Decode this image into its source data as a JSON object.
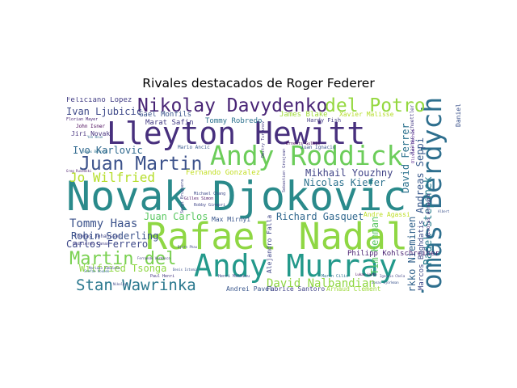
{
  "chart_data": {
    "type": "wordcloud",
    "title": "Rivales destacados de Roger Federer",
    "words": [
      {
        "text": "Novak Djokovic",
        "weight": 100
      },
      {
        "text": "Rafael Nadal",
        "weight": 86
      },
      {
        "text": "Andy Murray",
        "weight": 73
      },
      {
        "text": "Lleyton Hewitt",
        "weight": 71
      },
      {
        "text": "Tomas Berdych",
        "weight": 60
      },
      {
        "text": "Andy Roddick",
        "weight": 60
      },
      {
        "text": "Juan Martin",
        "weight": 44
      },
      {
        "text": "Martin del",
        "weight": 40
      },
      {
        "text": "Nikolay Davydenko",
        "weight": 42
      },
      {
        "text": "del Potro",
        "weight": 40
      },
      {
        "text": "Stan Wawrinka",
        "weight": 36
      },
      {
        "text": "Tommy Haas",
        "weight": 26
      },
      {
        "text": "Jo Wilfried",
        "weight": 26
      },
      {
        "text": "Wilfried Tsonga",
        "weight": 22
      },
      {
        "text": "Carlos Ferrero",
        "weight": 22
      },
      {
        "text": "Robin Soderling",
        "weight": 20
      },
      {
        "text": "David Nalbandian",
        "weight": 24
      },
      {
        "text": "Juan Carlos",
        "weight": 20
      },
      {
        "text": "Mikhail Youzhny",
        "weight": 20
      },
      {
        "text": "Nicolas Kiefer",
        "weight": 20
      },
      {
        "text": "Richard Gasquet",
        "weight": 20
      },
      {
        "text": "Radek Stepanek",
        "weight": 22
      },
      {
        "text": "Andreas Seppi",
        "weight": 20
      },
      {
        "text": "David Ferrer",
        "weight": 20
      },
      {
        "text": "Jarkko Nieminen",
        "weight": 18
      },
      {
        "text": "Ivan Ljubicic",
        "weight": 18
      },
      {
        "text": "Ivo Karlovic",
        "weight": 18
      },
      {
        "text": "Feliciano Lopez",
        "weight": 14
      },
      {
        "text": "Jiri Novak",
        "weight": 12
      },
      {
        "text": "Gael Monfils",
        "weight": 14
      },
      {
        "text": "Marat Safin",
        "weight": 14
      },
      {
        "text": "Tommy Robredo",
        "weight": 14
      },
      {
        "text": "James Blake",
        "weight": 15
      },
      {
        "text": "Xavier Malisse",
        "weight": 14
      },
      {
        "text": "Fernando Gonzalez",
        "weight": 14
      },
      {
        "text": "Philipp Kohlschreiber",
        "weight": 14
      },
      {
        "text": "Alejandro Falla",
        "weight": 14
      },
      {
        "text": "Tim Henman",
        "weight": 18
      },
      {
        "text": "Andrei Pavel",
        "weight": 12
      },
      {
        "text": "Fabrice Santoro",
        "weight": 12
      },
      {
        "text": "Arnaud Clement",
        "weight": 12
      },
      {
        "text": "Max Mirnyi",
        "weight": 12
      },
      {
        "text": "Andre Agassi",
        "weight": 12
      },
      {
        "text": "Hardy Fish",
        "weight": 11
      },
      {
        "text": "Juan Ignacio",
        "weight": 10
      },
      {
        "text": "John Isner",
        "weight": 9
      },
      {
        "text": "Marcos Baghdatis",
        "weight": 12
      },
      {
        "text": "Mario Ancic",
        "weight": 9
      },
      {
        "text": "Daniel",
        "weight": 9
      },
      {
        "text": "Thomas Johansson",
        "weight": 9
      },
      {
        "text": "Guillermo Canas",
        "weight": 8
      },
      {
        "text": "Paul Henri",
        "weight": 8
      },
      {
        "text": "Henri Mathieu",
        "weight": 8
      },
      {
        "text": "Marin Cilic",
        "weight": 8
      },
      {
        "text": "Nicolas Almagro",
        "weight": 10
      },
      {
        "text": "Rainer Schuettler",
        "weight": 9
      },
      {
        "text": "Michael Chang",
        "weight": 7
      },
      {
        "text": "Florian Mayer",
        "weight": 7
      },
      {
        "text": "Ernests Gulbis",
        "weight": 7
      },
      {
        "text": "Sergi Bruguera",
        "weight": 7
      },
      {
        "text": "Gilles Simon",
        "weight": 7
      },
      {
        "text": "Robby Ginepri",
        "weight": 7
      },
      {
        "text": "Greg Rusedski",
        "weight": 6
      },
      {
        "text": "Yen Hsun",
        "weight": 6
      },
      {
        "text": "Tomas Behrend",
        "weight": 6
      },
      {
        "text": "Dmitry Tursunov",
        "weight": 7
      },
      {
        "text": "Bjorn Phau",
        "weight": 6
      },
      {
        "text": "Olivier Rochus",
        "weight": 7
      },
      {
        "text": "Albert",
        "weight": 6
      },
      {
        "text": "Fernando Verdasco",
        "weight": 6
      },
      {
        "text": "Mariano Zabaleta",
        "weight": 6
      },
      {
        "text": "Stefan Koubek",
        "weight": 6
      },
      {
        "text": "Denis Istomin",
        "weight": 6
      },
      {
        "text": "Lukas Lacko",
        "weight": 6
      },
      {
        "text": "Sebastien Grosjean",
        "weight": 6
      },
      {
        "text": "Ignacio Chela",
        "weight": 6
      },
      {
        "text": "Jonas Bjorkman",
        "weight": 6
      },
      {
        "text": "Nikolay",
        "weight": 6
      }
    ]
  }
}
